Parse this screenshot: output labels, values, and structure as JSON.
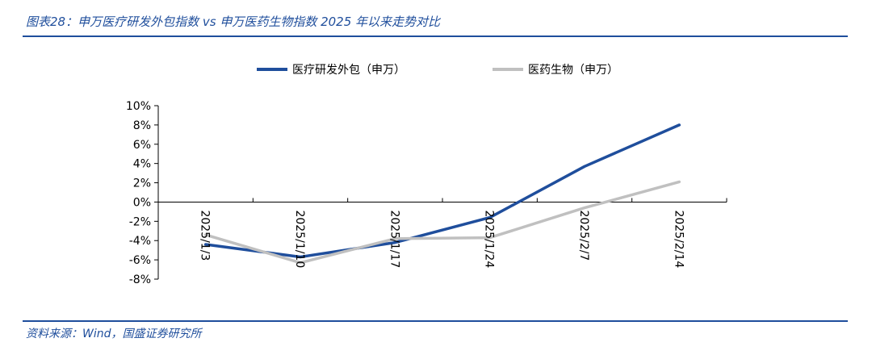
{
  "header": {
    "title": "图表28：申万医疗研发外包指数 vs 申万医药生物指数 2025 年以来走势对比"
  },
  "footer": {
    "source": "资料来源：Wind，国盛证券研究所"
  },
  "chart_data": {
    "type": "line",
    "title": "",
    "xlabel": "",
    "ylabel": "",
    "x": [
      "2025/1/3",
      "2025/1/10",
      "2025/1/17",
      "2025/1/24",
      "2025/2/7",
      "2025/2/14"
    ],
    "ylim": [
      -8,
      10
    ],
    "yticks": [
      -8,
      -6,
      -4,
      -2,
      0,
      2,
      4,
      6,
      8,
      10
    ],
    "ytick_labels": [
      "-8%",
      "-6%",
      "-4%",
      "-2%",
      "0%",
      "2%",
      "4%",
      "6%",
      "8%",
      "10%"
    ],
    "grid": false,
    "legend_position": "top",
    "series": [
      {
        "name": "医疗研发外包（申万）",
        "color": "#1f4e9c",
        "values": [
          -4.4,
          -5.7,
          -4.2,
          -1.6,
          3.7,
          8.0
        ]
      },
      {
        "name": "医药生物（申万）",
        "color": "#c0c0c0",
        "values": [
          -3.4,
          -6.3,
          -3.8,
          -3.7,
          -0.6,
          2.1
        ]
      }
    ]
  }
}
